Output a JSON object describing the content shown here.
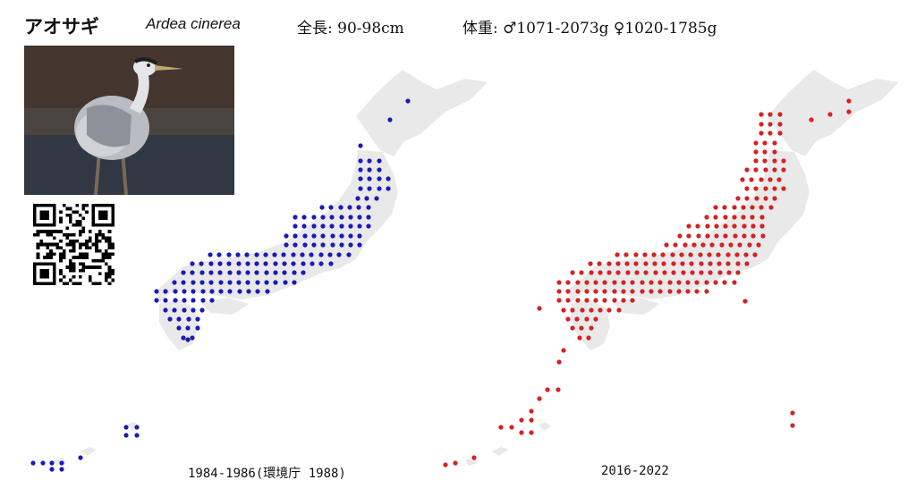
{
  "header": {
    "japanese_name": "アオサギ",
    "scientific_name": "Ardea cinerea",
    "length": "全長: 90-98cm",
    "weight": "体重: ♂1071-2073g ♀1020-1785g"
  },
  "maps": [
    {
      "caption": "1984-1986(環境庁 1988)",
      "dot_color": "#1a1ab8"
    },
    {
      "caption": "2016-2022",
      "dot_color": "#d42222"
    }
  ],
  "colors": {
    "land": "#e9e9e9",
    "text": "#111111"
  }
}
